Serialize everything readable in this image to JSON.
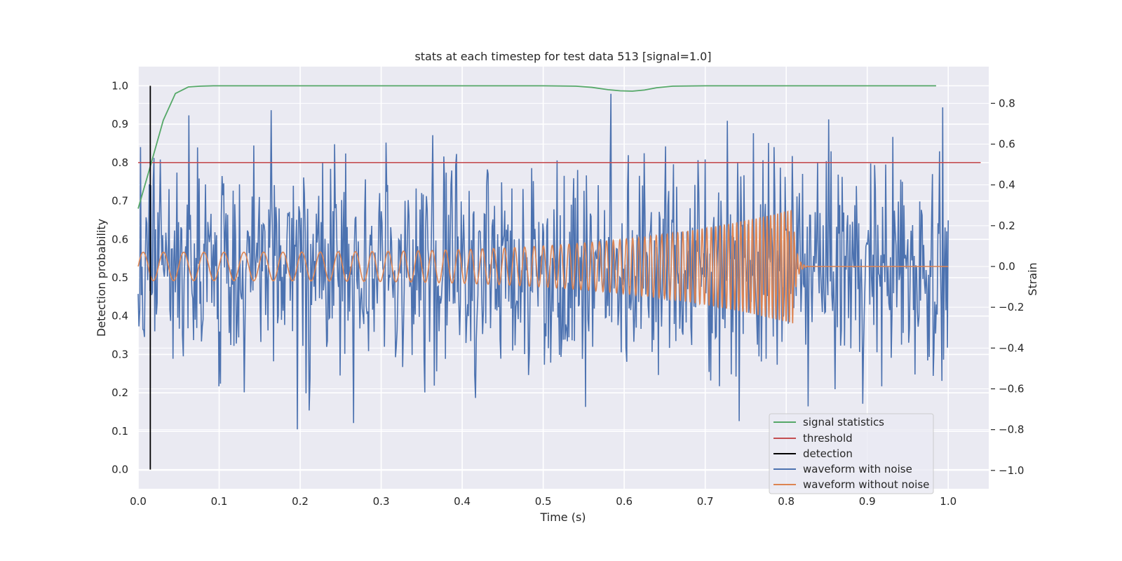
{
  "chart_data": {
    "type": "line",
    "title": "stats at each timestep for test data 513 [signal=1.0]",
    "xlabel": "Time (s)",
    "ylabel": "Detection probability",
    "y2label": "Strain",
    "xlim": [
      0.0,
      1.05
    ],
    "ylim": [
      -0.05,
      1.05
    ],
    "y2lim": [
      -1.09,
      0.98
    ],
    "xticks": [
      0.0,
      0.1,
      0.2,
      0.3,
      0.4,
      0.5,
      0.6,
      0.7,
      0.8,
      0.9,
      1.0
    ],
    "xtick_labels": [
      "0.0",
      "0.1",
      "0.2",
      "0.3",
      "0.4",
      "0.5",
      "0.6",
      "0.7",
      "0.8",
      "0.9",
      "1.0"
    ],
    "yticks": [
      0.0,
      0.1,
      0.2,
      0.3,
      0.4,
      0.5,
      0.6,
      0.7,
      0.8,
      0.9,
      1.0
    ],
    "ytick_labels": [
      "0.0",
      "0.1",
      "0.2",
      "0.3",
      "0.4",
      "0.5",
      "0.6",
      "0.7",
      "0.8",
      "0.9",
      "1.0"
    ],
    "y2ticks": [
      -1.0,
      -0.8,
      -0.6,
      -0.4,
      -0.2,
      0.0,
      0.2,
      0.4,
      0.6,
      0.8
    ],
    "y2tick_labels": [
      "−1.0",
      "−0.8",
      "−0.6",
      "−0.4",
      "−0.2",
      "0.0",
      "0.2",
      "0.4",
      "0.6",
      "0.8"
    ],
    "grid": true,
    "legend_position": "lower-right",
    "series": [
      {
        "name": "signal statistics",
        "color": "#55a868",
        "axis": "left",
        "x": [
          0.0,
          0.015,
          0.031,
          0.046,
          0.062,
          0.077,
          0.093,
          0.2,
          0.3,
          0.4,
          0.5,
          0.54,
          0.56,
          0.58,
          0.595,
          0.61,
          0.625,
          0.64,
          0.66,
          0.7,
          0.8,
          0.9,
          0.985
        ],
        "y": [
          0.68,
          0.79,
          0.91,
          0.98,
          0.997,
          0.999,
          1.0,
          1.0,
          1.0,
          1.0,
          1.0,
          0.999,
          0.996,
          0.99,
          0.987,
          0.986,
          0.989,
          0.995,
          0.999,
          1.0,
          1.0,
          1.0,
          1.0
        ]
      },
      {
        "name": "threshold",
        "color": "#c44e52",
        "axis": "left",
        "x": [
          0.0,
          1.04
        ],
        "y": [
          0.8,
          0.8
        ]
      },
      {
        "name": "detection",
        "color": "#000000",
        "axis": "left",
        "x": [
          0.015,
          0.015
        ],
        "y": [
          0.0,
          1.0
        ]
      },
      {
        "name": "waveform with noise",
        "color": "#4c72b0",
        "axis": "right",
        "amplitude": 0.27,
        "samples": 1024,
        "x_range": [
          0.0,
          1.0
        ],
        "y_range": [
          -0.9,
          0.9
        ]
      },
      {
        "name": "waveform without noise",
        "color": "#dd8452",
        "axis": "right",
        "amplitude_start": 0.07,
        "amplitude_peak": 0.28,
        "frequency_start": 40,
        "frequency_peak": 250,
        "merger_time": 0.808,
        "x_range": [
          0.0,
          1.0
        ]
      }
    ]
  }
}
